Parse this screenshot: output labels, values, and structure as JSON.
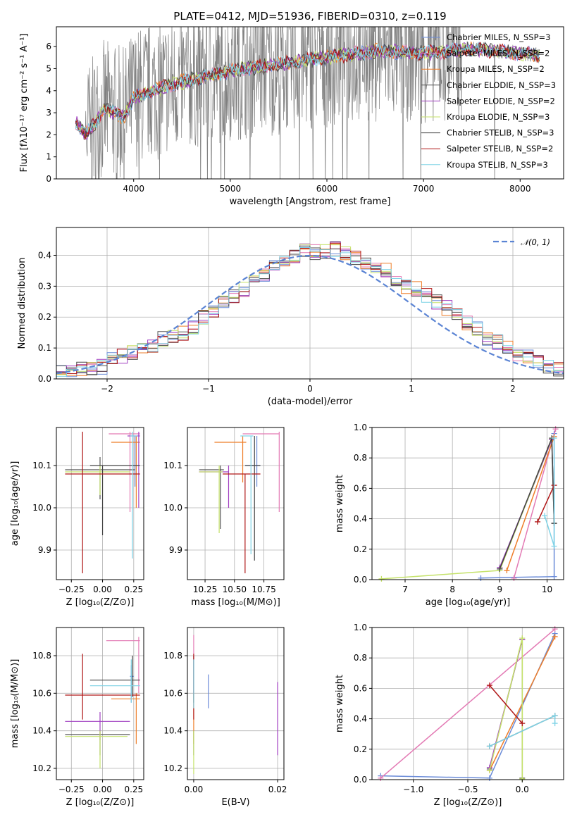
{
  "title": "PLATE=0412, MJD=51936, FIBERID=0310, z=0.119",
  "colors": {
    "Chabrier MILES": "#6a8bd8",
    "Salpeter MILES": "#e37ab4",
    "Kroupa MILES": "#ee7d28",
    "Chabrier ELODIE": "#555555",
    "Salpeter ELODIE": "#a13fc1",
    "Kroupa ELODIE": "#c5e26a",
    "Chabrier STELIB": "#444444",
    "Salpeter STELIB": "#b01818",
    "Kroupa STELIB": "#7fd3e6",
    "data": "#808080"
  },
  "chart_data": [
    {
      "id": "spectrum",
      "type": "line",
      "title": "PLATE=0412, MJD=51936, FIBERID=0310, z=0.119",
      "xlabel": "wavelength [Angstrom, rest frame]",
      "ylabel": "Flux [fλ10⁻¹⁷ erg cm⁻² s⁻¹ A⁻¹]",
      "xlim": [
        3200,
        8450
      ],
      "ylim": [
        0,
        6.9
      ],
      "xticks": [
        "4000",
        "5000",
        "6000",
        "7000",
        "8000"
      ],
      "yticks": [
        "0",
        "1",
        "2",
        "3",
        "4",
        "5",
        "6"
      ],
      "legend": [
        "Chabrier MILES, N_SSP=3",
        "Salpeter MILES, N_SSP=2",
        "Kroupa MILES, N_SSP=2",
        "Chabrier ELODIE, N_SSP=3",
        "Salpeter ELODIE, N_SSP=2",
        "Kroupa ELODIE, N_SSP=3",
        "Chabrier STELIB, N_SSP=3",
        "Salpeter STELIB, N_SSP=2",
        "Kroupa STELIB, N_SSP=3"
      ],
      "legend_placement": "upper right",
      "model_continuum": {
        "x": [
          3400,
          3500,
          3600,
          3700,
          3800,
          3900,
          4000,
          4200,
          4500,
          5000,
          5500,
          6000,
          6500,
          7000,
          7500,
          8000,
          8200
        ],
        "y": [
          2.6,
          2.0,
          2.5,
          3.2,
          3.0,
          2.8,
          3.7,
          4.0,
          4.4,
          4.9,
          5.2,
          5.5,
          5.8,
          5.7,
          5.9,
          5.7,
          5.6
        ]
      }
    },
    {
      "id": "residuals",
      "type": "histogram",
      "xlabel": "(data-model)/error",
      "ylabel": "Normed distribution",
      "xlim": [
        -2.5,
        2.5
      ],
      "ylim": [
        0,
        0.49
      ],
      "xticks": [
        "−2",
        "−1",
        "0",
        "1",
        "2"
      ],
      "yticks": [
        "0.0",
        "0.1",
        "0.2",
        "0.3",
        "0.4"
      ],
      "legend": [
        "𝒩(0, 1)"
      ],
      "legend_placement": "upper right",
      "bin_edges": [
        -2.5,
        -2.4,
        -2.3,
        -2.2,
        -2.1,
        -2.0,
        -1.9,
        -1.8,
        -1.7,
        -1.6,
        -1.5,
        -1.4,
        -1.3,
        -1.2,
        -1.1,
        -1.0,
        -0.9,
        -0.8,
        -0.7,
        -0.6,
        -0.5,
        -0.4,
        -0.3,
        -0.2,
        -0.1,
        0.0,
        0.1,
        0.2,
        0.3,
        0.4,
        0.5,
        0.6,
        0.7,
        0.8,
        0.9,
        1.0,
        1.1,
        1.2,
        1.3,
        1.4,
        1.5,
        1.6,
        1.7,
        1.8,
        1.9,
        2.0,
        2.1,
        2.2,
        2.3,
        2.4,
        2.5
      ],
      "base_values": [
        0.02,
        0.025,
        0.03,
        0.035,
        0.04,
        0.06,
        0.075,
        0.085,
        0.095,
        0.11,
        0.13,
        0.14,
        0.15,
        0.17,
        0.2,
        0.22,
        0.25,
        0.27,
        0.29,
        0.32,
        0.34,
        0.36,
        0.38,
        0.4,
        0.42,
        0.41,
        0.41,
        0.42,
        0.41,
        0.39,
        0.38,
        0.36,
        0.35,
        0.32,
        0.3,
        0.29,
        0.27,
        0.25,
        0.23,
        0.21,
        0.18,
        0.16,
        0.13,
        0.12,
        0.1,
        0.08,
        0.07,
        0.06,
        0.04,
        0.03
      ]
    },
    {
      "id": "age_vs_Z",
      "type": "scatter",
      "xlabel": "Z [log₁₀(Z/Z⊙)]",
      "ylabel": "age  [log₁₀(age/yr)]",
      "xlim": [
        -0.37,
        0.33
      ],
      "ylim": [
        9.83,
        10.19
      ],
      "xticks": [
        "−0.25",
        "0.00",
        "0.25"
      ],
      "yticks": [
        "9.9",
        "10.0",
        "10.1"
      ],
      "points": [
        {
          "model": "Chabrier MILES",
          "x": 0.26,
          "xlo": 0.23,
          "xhi": 0.29,
          "y": 10.1,
          "ylo": 10.05,
          "yhi": 10.17
        },
        {
          "model": "Salpeter MILES",
          "x": 0.22,
          "xlo": 0.05,
          "xhi": 0.3,
          "y": 10.175,
          "ylo": 9.99,
          "yhi": 10.18
        },
        {
          "model": "Kroupa MILES",
          "x": 0.27,
          "xlo": 0.07,
          "xhi": 0.3,
          "y": 10.155,
          "ylo": 10.0,
          "yhi": 10.17
        },
        {
          "model": "Chabrier ELODIE",
          "x": -0.02,
          "xlo": -0.3,
          "xhi": 0.26,
          "y": 10.09,
          "ylo": 10.02,
          "yhi": 10.12
        },
        {
          "model": "Salpeter ELODIE",
          "x": 0.29,
          "xlo": 0.2,
          "xhi": 0.3,
          "y": 10.17,
          "ylo": 10.0,
          "yhi": 10.18
        },
        {
          "model": "Kroupa ELODIE",
          "x": -0.02,
          "xlo": -0.3,
          "xhi": 0.22,
          "y": 10.085,
          "ylo": 10.03,
          "yhi": 10.1
        },
        {
          "model": "Chabrier STELIB",
          "x": 0.0,
          "xlo": -0.1,
          "xhi": 0.3,
          "y": 10.1,
          "ylo": 9.935,
          "yhi": 10.1
        },
        {
          "model": "Salpeter STELIB",
          "x": -0.16,
          "xlo": -0.3,
          "xhi": 0.3,
          "y": 10.08,
          "ylo": 9.845,
          "yhi": 10.18
        },
        {
          "model": "Kroupa STELIB",
          "x": 0.24,
          "xlo": 0.22,
          "xhi": 0.28,
          "y": 10.17,
          "ylo": 9.88,
          "yhi": 10.18
        }
      ]
    },
    {
      "id": "age_vs_mass",
      "type": "scatter",
      "xlabel": "mass [log₁₀(M/M⊙)]",
      "ylabel": "",
      "xlim": [
        10.1,
        10.92
      ],
      "ylim": [
        9.83,
        10.19
      ],
      "xticks": [
        "10.25",
        "10.50",
        "10.75"
      ],
      "yticks": [
        "9.9",
        "10.0",
        "10.1"
      ],
      "points": [
        {
          "model": "Chabrier MILES",
          "x": 10.69,
          "xlo": 10.59,
          "xhi": 10.72,
          "y": 10.1,
          "ylo": 10.05,
          "yhi": 10.17
        },
        {
          "model": "Salpeter MILES",
          "x": 10.88,
          "xlo": 10.57,
          "xhi": 10.88,
          "y": 10.175,
          "ylo": 9.99,
          "yhi": 10.18
        },
        {
          "model": "Kroupa MILES",
          "x": 10.57,
          "xlo": 10.33,
          "xhi": 10.6,
          "y": 10.155,
          "ylo": 10.06,
          "yhi": 10.17
        },
        {
          "model": "Chabrier ELODIE",
          "x": 10.38,
          "xlo": 10.2,
          "xhi": 10.41,
          "y": 10.09,
          "ylo": 9.95,
          "yhi": 10.1
        },
        {
          "model": "Salpeter ELODIE",
          "x": 10.45,
          "xlo": 10.2,
          "xhi": 10.45,
          "y": 10.085,
          "ylo": 10.0,
          "yhi": 10.1
        },
        {
          "model": "Kroupa ELODIE",
          "x": 10.37,
          "xlo": 10.2,
          "xhi": 10.4,
          "y": 10.085,
          "ylo": 9.94,
          "yhi": 10.1
        },
        {
          "model": "Chabrier STELIB",
          "x": 10.67,
          "xlo": 10.59,
          "xhi": 10.72,
          "y": 10.1,
          "ylo": 9.875,
          "yhi": 10.17
        },
        {
          "model": "Salpeter STELIB",
          "x": 10.59,
          "xlo": 10.4,
          "xhi": 10.72,
          "y": 10.08,
          "ylo": 9.845,
          "yhi": 10.08
        },
        {
          "model": "Kroupa STELIB",
          "x": 10.64,
          "xlo": 10.55,
          "xhi": 10.66,
          "y": 10.17,
          "ylo": 9.89,
          "yhi": 10.17
        }
      ]
    },
    {
      "id": "weight_vs_age",
      "type": "line",
      "xlabel": "age  [log₁₀(age/yr)]",
      "ylabel": "mass weight",
      "xlim": [
        6.3,
        10.35
      ],
      "ylim": [
        0,
        1.0
      ],
      "xticks": [
        "7",
        "8",
        "9",
        "10"
      ],
      "yticks": [
        "0.0",
        "0.2",
        "0.4",
        "0.6",
        "0.8",
        "1.0"
      ],
      "series": [
        {
          "name": "Chabrier MILES",
          "x": [
            8.6,
            10.15,
            10.15
          ],
          "y": [
            0.01,
            0.02,
            0.96
          ]
        },
        {
          "name": "Salpeter MILES",
          "x": [
            9.3,
            10.18
          ],
          "y": [
            0.01,
            0.99
          ]
        },
        {
          "name": "Kroupa MILES",
          "x": [
            9.15,
            10.15
          ],
          "y": [
            0.06,
            0.94
          ]
        },
        {
          "name": "Chabrier ELODIE",
          "x": [
            9.0,
            10.1,
            10.15
          ],
          "y": [
            0.07,
            0.92,
            0.37
          ]
        },
        {
          "name": "Salpeter ELODIE",
          "x": [
            9.0,
            10.1
          ],
          "y": [
            0.08,
            0.92
          ]
        },
        {
          "name": "Kroupa ELODIE",
          "x": [
            6.5,
            9.0,
            10.1
          ],
          "y": [
            0.005,
            0.06,
            0.93
          ]
        },
        {
          "name": "Chabrier STELIB",
          "x": [
            9.0,
            10.1,
            10.15
          ],
          "y": [
            0.07,
            0.93,
            0.37
          ]
        },
        {
          "name": "Salpeter STELIB",
          "x": [
            9.8,
            10.15
          ],
          "y": [
            0.38,
            0.62
          ]
        },
        {
          "name": "Kroupa STELIB",
          "x": [
            9.95,
            10.15,
            10.15
          ],
          "y": [
            0.42,
            0.22,
            0.93
          ]
        }
      ]
    },
    {
      "id": "mass_vs_Z",
      "type": "scatter",
      "xlabel": "Z [log₁₀(Z/Z⊙)]",
      "ylabel": "mass [log₁₀(M/M⊙)]",
      "xlim": [
        -0.37,
        0.33
      ],
      "ylim": [
        10.14,
        10.95
      ],
      "xticks": [
        "−0.25",
        "0.00",
        "0.25"
      ],
      "yticks": [
        "10.2",
        "10.4",
        "10.6",
        "10.8"
      ],
      "points": [
        {
          "model": "Chabrier MILES",
          "x": 0.23,
          "xlo": 0.22,
          "xhi": 0.25,
          "y": 10.69,
          "ylo": 10.55,
          "yhi": 10.75
        },
        {
          "model": "Salpeter MILES",
          "x": 0.29,
          "xlo": 0.03,
          "xhi": 0.3,
          "y": 10.88,
          "ylo": 10.6,
          "yhi": 10.9
        },
        {
          "model": "Kroupa MILES",
          "x": 0.27,
          "xlo": 0.07,
          "xhi": 0.3,
          "y": 10.57,
          "ylo": 10.33,
          "yhi": 10.6
        },
        {
          "model": "Chabrier ELODIE",
          "x": -0.02,
          "xlo": -0.3,
          "xhi": 0.22,
          "y": 10.38,
          "ylo": 10.27,
          "yhi": 10.4
        },
        {
          "model": "Salpeter ELODIE",
          "x": -0.02,
          "xlo": -0.3,
          "xhi": 0.22,
          "y": 10.45,
          "ylo": 10.35,
          "yhi": 10.5
        },
        {
          "model": "Kroupa ELODIE",
          "x": -0.02,
          "xlo": -0.3,
          "xhi": 0.2,
          "y": 10.37,
          "ylo": 10.2,
          "yhi": 10.4
        },
        {
          "model": "Chabrier STELIB",
          "x": 0.24,
          "xlo": -0.1,
          "xhi": 0.3,
          "y": 10.67,
          "ylo": 10.58,
          "yhi": 10.8
        },
        {
          "model": "Salpeter STELIB",
          "x": -0.16,
          "xlo": -0.3,
          "xhi": 0.3,
          "y": 10.59,
          "ylo": 10.46,
          "yhi": 10.81
        },
        {
          "model": "Kroupa STELIB",
          "x": 0.23,
          "xlo": -0.1,
          "xhi": 0.3,
          "y": 10.64,
          "ylo": 10.55,
          "yhi": 10.78
        }
      ]
    },
    {
      "id": "mass_vs_ebv",
      "type": "scatter",
      "xlabel": "E(B-V)",
      "ylabel": "",
      "xlim": [
        -0.0015,
        0.0215
      ],
      "ylim": [
        10.14,
        10.95
      ],
      "xticks": [
        "0.00",
        "0.02"
      ],
      "yticks": [
        "10.2",
        "10.4",
        "10.6",
        "10.8"
      ],
      "points": [
        {
          "model": "Chabrier MILES",
          "x": 0.0035,
          "ylo": 10.52,
          "yhi": 10.7
        },
        {
          "model": "Salpeter MILES",
          "x": 0.0,
          "ylo": 10.6,
          "yhi": 10.91
        },
        {
          "model": "Kroupa MILES",
          "x": 0.0,
          "ylo": 10.33,
          "yhi": 10.6
        },
        {
          "model": "Chabrier ELODIE",
          "x": 0.0,
          "ylo": 10.27,
          "yhi": 10.4
        },
        {
          "model": "Salpeter ELODIE",
          "x": 0.02,
          "ylo": 10.27,
          "yhi": 10.66
        },
        {
          "model": "Kroupa ELODIE",
          "x": 0.0,
          "ylo": 10.17,
          "yhi": 10.4
        },
        {
          "model": "Chabrier STELIB",
          "x": 0.0,
          "ylo": 10.55,
          "yhi": 10.8
        },
        {
          "model": "Salpeter STELIB",
          "x": 0.0,
          "ylo": 10.46,
          "yhi": 10.81
        },
        {
          "model": "Kroupa STELIB",
          "x": 0.0,
          "ylo": 10.52,
          "yhi": 10.78
        }
      ]
    },
    {
      "id": "weight_vs_Z",
      "type": "line",
      "xlabel": "Z [log₁₀(Z/Z⊙)]",
      "ylabel": "mass weight",
      "xlim": [
        -1.38,
        0.38
      ],
      "ylim": [
        0,
        1.0
      ],
      "xticks": [
        "−1.0",
        "−0.5",
        "0.0"
      ],
      "yticks": [
        "0.0",
        "0.2",
        "0.4",
        "0.6",
        "0.8",
        "1.0"
      ],
      "series": [
        {
          "name": "Chabrier MILES",
          "x": [
            -1.3,
            -0.3,
            0.3
          ],
          "y": [
            0.025,
            0.01,
            0.96
          ]
        },
        {
          "name": "Salpeter MILES",
          "x": [
            -1.3,
            0.3
          ],
          "y": [
            0.01,
            0.99
          ]
        },
        {
          "name": "Kroupa MILES",
          "x": [
            -0.3,
            0.3
          ],
          "y": [
            0.06,
            0.94
          ]
        },
        {
          "name": "Chabrier ELODIE",
          "x": [
            -0.3,
            0.0,
            0.0
          ],
          "y": [
            0.07,
            0.92,
            0.01
          ]
        },
        {
          "name": "Salpeter ELODIE",
          "x": [
            -0.3,
            0.0
          ],
          "y": [
            0.08,
            0.92
          ]
        },
        {
          "name": "Kroupa ELODIE",
          "x": [
            -0.3,
            0.0,
            0.0
          ],
          "y": [
            0.06,
            0.93,
            0.005
          ]
        },
        {
          "name": "Chabrier STELIB",
          "x": [
            -0.3,
            0.3
          ],
          "y": [
            0.22,
            0.42
          ]
        },
        {
          "name": "Salpeter STELIB",
          "x": [
            -0.3,
            0.0
          ],
          "y": [
            0.62,
            0.37
          ]
        },
        {
          "name": "Kroupa STELIB",
          "x": [
            -0.3,
            0.3,
            0.3
          ],
          "y": [
            0.22,
            0.42,
            0.37
          ]
        }
      ]
    }
  ]
}
